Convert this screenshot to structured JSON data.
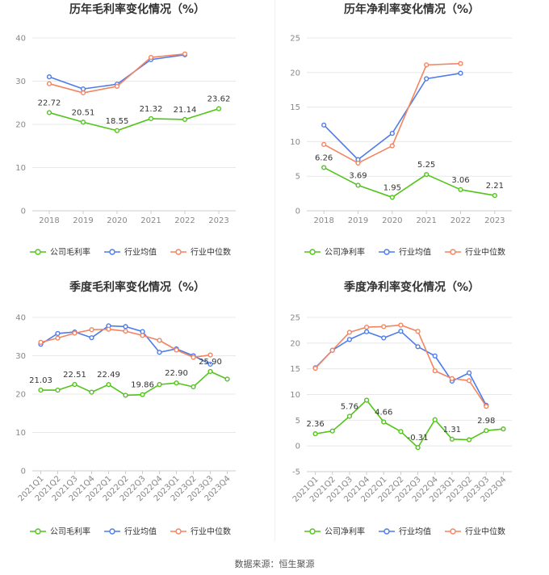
{
  "colors": {
    "company": "#52c41a",
    "industry_avg": "#4c7bea",
    "industry_median": "#f4845f",
    "grid": "#e8e8e8",
    "axis": "#cccccc"
  },
  "footer": {
    "source": "数据来源：恒生聚源"
  },
  "chart_data": [
    {
      "id": "annual-gross",
      "type": "line",
      "title": "历年毛利率变化情况（%）",
      "categories": [
        "2018",
        "2019",
        "2020",
        "2021",
        "2022",
        "2023"
      ],
      "ylim": [
        0,
        40
      ],
      "yticks": [
        0,
        10,
        20,
        30,
        40
      ],
      "legend_position": "bottom",
      "series": [
        {
          "name": "公司毛利率",
          "key": "company",
          "values": [
            22.72,
            20.51,
            18.55,
            21.32,
            21.14,
            23.62
          ]
        },
        {
          "name": "行业均值",
          "key": "industry_avg",
          "values": [
            31.0,
            28.2,
            29.3,
            35.0,
            36.1,
            null
          ]
        },
        {
          "name": "行业中位数",
          "key": "industry_median",
          "values": [
            29.4,
            27.3,
            28.8,
            35.5,
            36.3,
            null
          ]
        }
      ],
      "data_labels": [
        {
          "index": 0,
          "text": "22.72"
        },
        {
          "index": 1,
          "text": "20.51"
        },
        {
          "index": 2,
          "text": "18.55"
        },
        {
          "index": 3,
          "text": "21.32"
        },
        {
          "index": 4,
          "text": "21.14"
        },
        {
          "index": 5,
          "text": "23.62"
        }
      ]
    },
    {
      "id": "annual-net",
      "type": "line",
      "title": "历年净利率变化情况（%）",
      "categories": [
        "2018",
        "2019",
        "2020",
        "2021",
        "2022",
        "2023"
      ],
      "ylim": [
        0,
        25
      ],
      "yticks": [
        0,
        5,
        10,
        15,
        20,
        25
      ],
      "legend_position": "bottom",
      "series": [
        {
          "name": "公司净利率",
          "key": "company",
          "values": [
            6.26,
            3.69,
            1.95,
            5.25,
            3.06,
            2.21
          ]
        },
        {
          "name": "行业均值",
          "key": "industry_avg",
          "values": [
            12.4,
            7.4,
            11.2,
            19.1,
            19.9,
            null
          ]
        },
        {
          "name": "行业中位数",
          "key": "industry_median",
          "values": [
            9.6,
            6.9,
            9.4,
            21.1,
            21.3,
            null
          ]
        }
      ],
      "data_labels": [
        {
          "index": 0,
          "text": "6.26"
        },
        {
          "index": 1,
          "text": "3.69"
        },
        {
          "index": 2,
          "text": "1.95"
        },
        {
          "index": 3,
          "text": "5.25"
        },
        {
          "index": 4,
          "text": "3.06"
        },
        {
          "index": 5,
          "text": "2.21"
        }
      ]
    },
    {
      "id": "quarterly-gross",
      "type": "line",
      "title": "季度毛利率变化情况（%）",
      "categories": [
        "2021Q1",
        "2021Q2",
        "2021Q3",
        "2021Q4",
        "2022Q1",
        "2022Q2",
        "2022Q3",
        "2022Q4",
        "2023Q1",
        "2023Q2",
        "2023Q3",
        "2023Q4"
      ],
      "ylim": [
        0,
        40
      ],
      "yticks": [
        0,
        10,
        20,
        30,
        40
      ],
      "legend_position": "bottom",
      "series": [
        {
          "name": "公司毛利率",
          "key": "company",
          "values": [
            21.03,
            21.03,
            22.51,
            20.5,
            22.49,
            19.7,
            19.86,
            22.5,
            22.9,
            21.9,
            25.9,
            23.9
          ]
        },
        {
          "name": "行业均值",
          "key": "industry_avg",
          "values": [
            33.0,
            35.8,
            36.2,
            34.7,
            37.8,
            37.6,
            36.3,
            30.9,
            31.8,
            30.0,
            27.8,
            null
          ]
        },
        {
          "name": "行业中位数",
          "key": "industry_median",
          "values": [
            33.5,
            34.6,
            35.9,
            36.8,
            36.9,
            36.4,
            35.3,
            34.0,
            31.5,
            29.6,
            30.2,
            null
          ]
        }
      ],
      "data_labels": [
        {
          "index": 0,
          "text": "21.03"
        },
        {
          "index": 2,
          "text": "22.51"
        },
        {
          "index": 4,
          "text": "22.49"
        },
        {
          "index": 6,
          "text": "19.86"
        },
        {
          "index": 8,
          "text": "22.90"
        },
        {
          "index": 10,
          "text": "25.90"
        }
      ]
    },
    {
      "id": "quarterly-net",
      "type": "line",
      "title": "季度净利率变化情况（%）",
      "categories": [
        "2021Q1",
        "2021Q2",
        "2021Q3",
        "2021Q4",
        "2022Q1",
        "2022Q2",
        "2022Q3",
        "2022Q4",
        "2023Q1",
        "2023Q2",
        "2023Q3",
        "2023Q4"
      ],
      "ylim": [
        -5,
        25
      ],
      "yticks": [
        -5,
        0,
        5,
        10,
        15,
        20,
        25
      ],
      "legend_position": "bottom",
      "series": [
        {
          "name": "公司净利率",
          "key": "company",
          "values": [
            2.36,
            2.9,
            5.76,
            8.9,
            4.66,
            2.8,
            -0.31,
            5.1,
            1.31,
            1.2,
            2.98,
            3.3
          ]
        },
        {
          "name": "行业均值",
          "key": "industry_avg",
          "values": [
            15.2,
            18.6,
            20.7,
            22.2,
            21.0,
            22.3,
            19.3,
            17.5,
            12.6,
            14.2,
            7.9,
            null
          ]
        },
        {
          "name": "行业中位数",
          "key": "industry_median",
          "values": [
            15.1,
            18.6,
            22.1,
            23.1,
            23.2,
            23.5,
            22.3,
            14.6,
            13.1,
            12.7,
            7.7,
            null
          ]
        }
      ],
      "data_labels": [
        {
          "index": 0,
          "text": "2.36"
        },
        {
          "index": 2,
          "text": "5.76"
        },
        {
          "index": 4,
          "text": "4.66"
        },
        {
          "index": 6,
          "text": "-0.31"
        },
        {
          "index": 8,
          "text": "1.31"
        },
        {
          "index": 10,
          "text": "2.98"
        }
      ]
    }
  ]
}
